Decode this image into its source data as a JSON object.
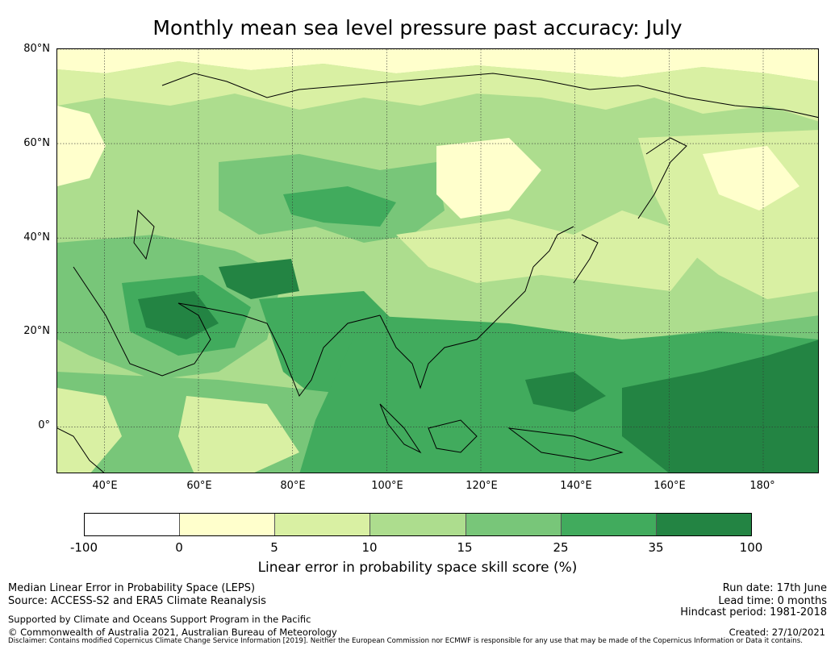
{
  "title": "Monthly mean sea level pressure past accuracy: July",
  "map": {
    "lat_labels": [
      "80°N",
      "60°N",
      "40°N",
      "20°N",
      "0°"
    ],
    "lon_labels": [
      "40°E",
      "60°E",
      "80°E",
      "100°E",
      "120°E",
      "140°E",
      "160°E",
      "180°"
    ],
    "extent_lon": [
      30,
      192
    ],
    "extent_lat": [
      -10,
      80
    ],
    "grid": true
  },
  "colorbar": {
    "ticks": [
      "-100",
      "0",
      "5",
      "10",
      "15",
      "25",
      "35",
      "100"
    ],
    "colors": [
      "#ffffff",
      "#ffffcc",
      "#d9f0a3",
      "#addd8e",
      "#78c679",
      "#41ab5d",
      "#238443"
    ],
    "label": "Linear error in probability space skill score (%)"
  },
  "footer": {
    "line1_left": "Median Linear Error in Probability Space (LEPS)",
    "line2_left": "Source: ACCESS-S2 and ERA5 Climate Reanalysis",
    "line3_left": "Supported by Climate and Oceans Support Program in the Pacific",
    "line4_left": "© Commonwealth of Australia 2021, Australian Bureau of Meteorology",
    "run_date": "Run date: 17th June",
    "lead_time": "Lead time: 0 months",
    "hindcast": "Hindcast period: 1981-2018",
    "created": "Created: 27/10/2021",
    "disclaimer": "Disclaimer: Contains modified Copernicus Climate Change Service Information [2019]. Neither the European Commission nor ECMWF is responsible for any use that may be made of the Copernicus Information or Data it contains."
  }
}
